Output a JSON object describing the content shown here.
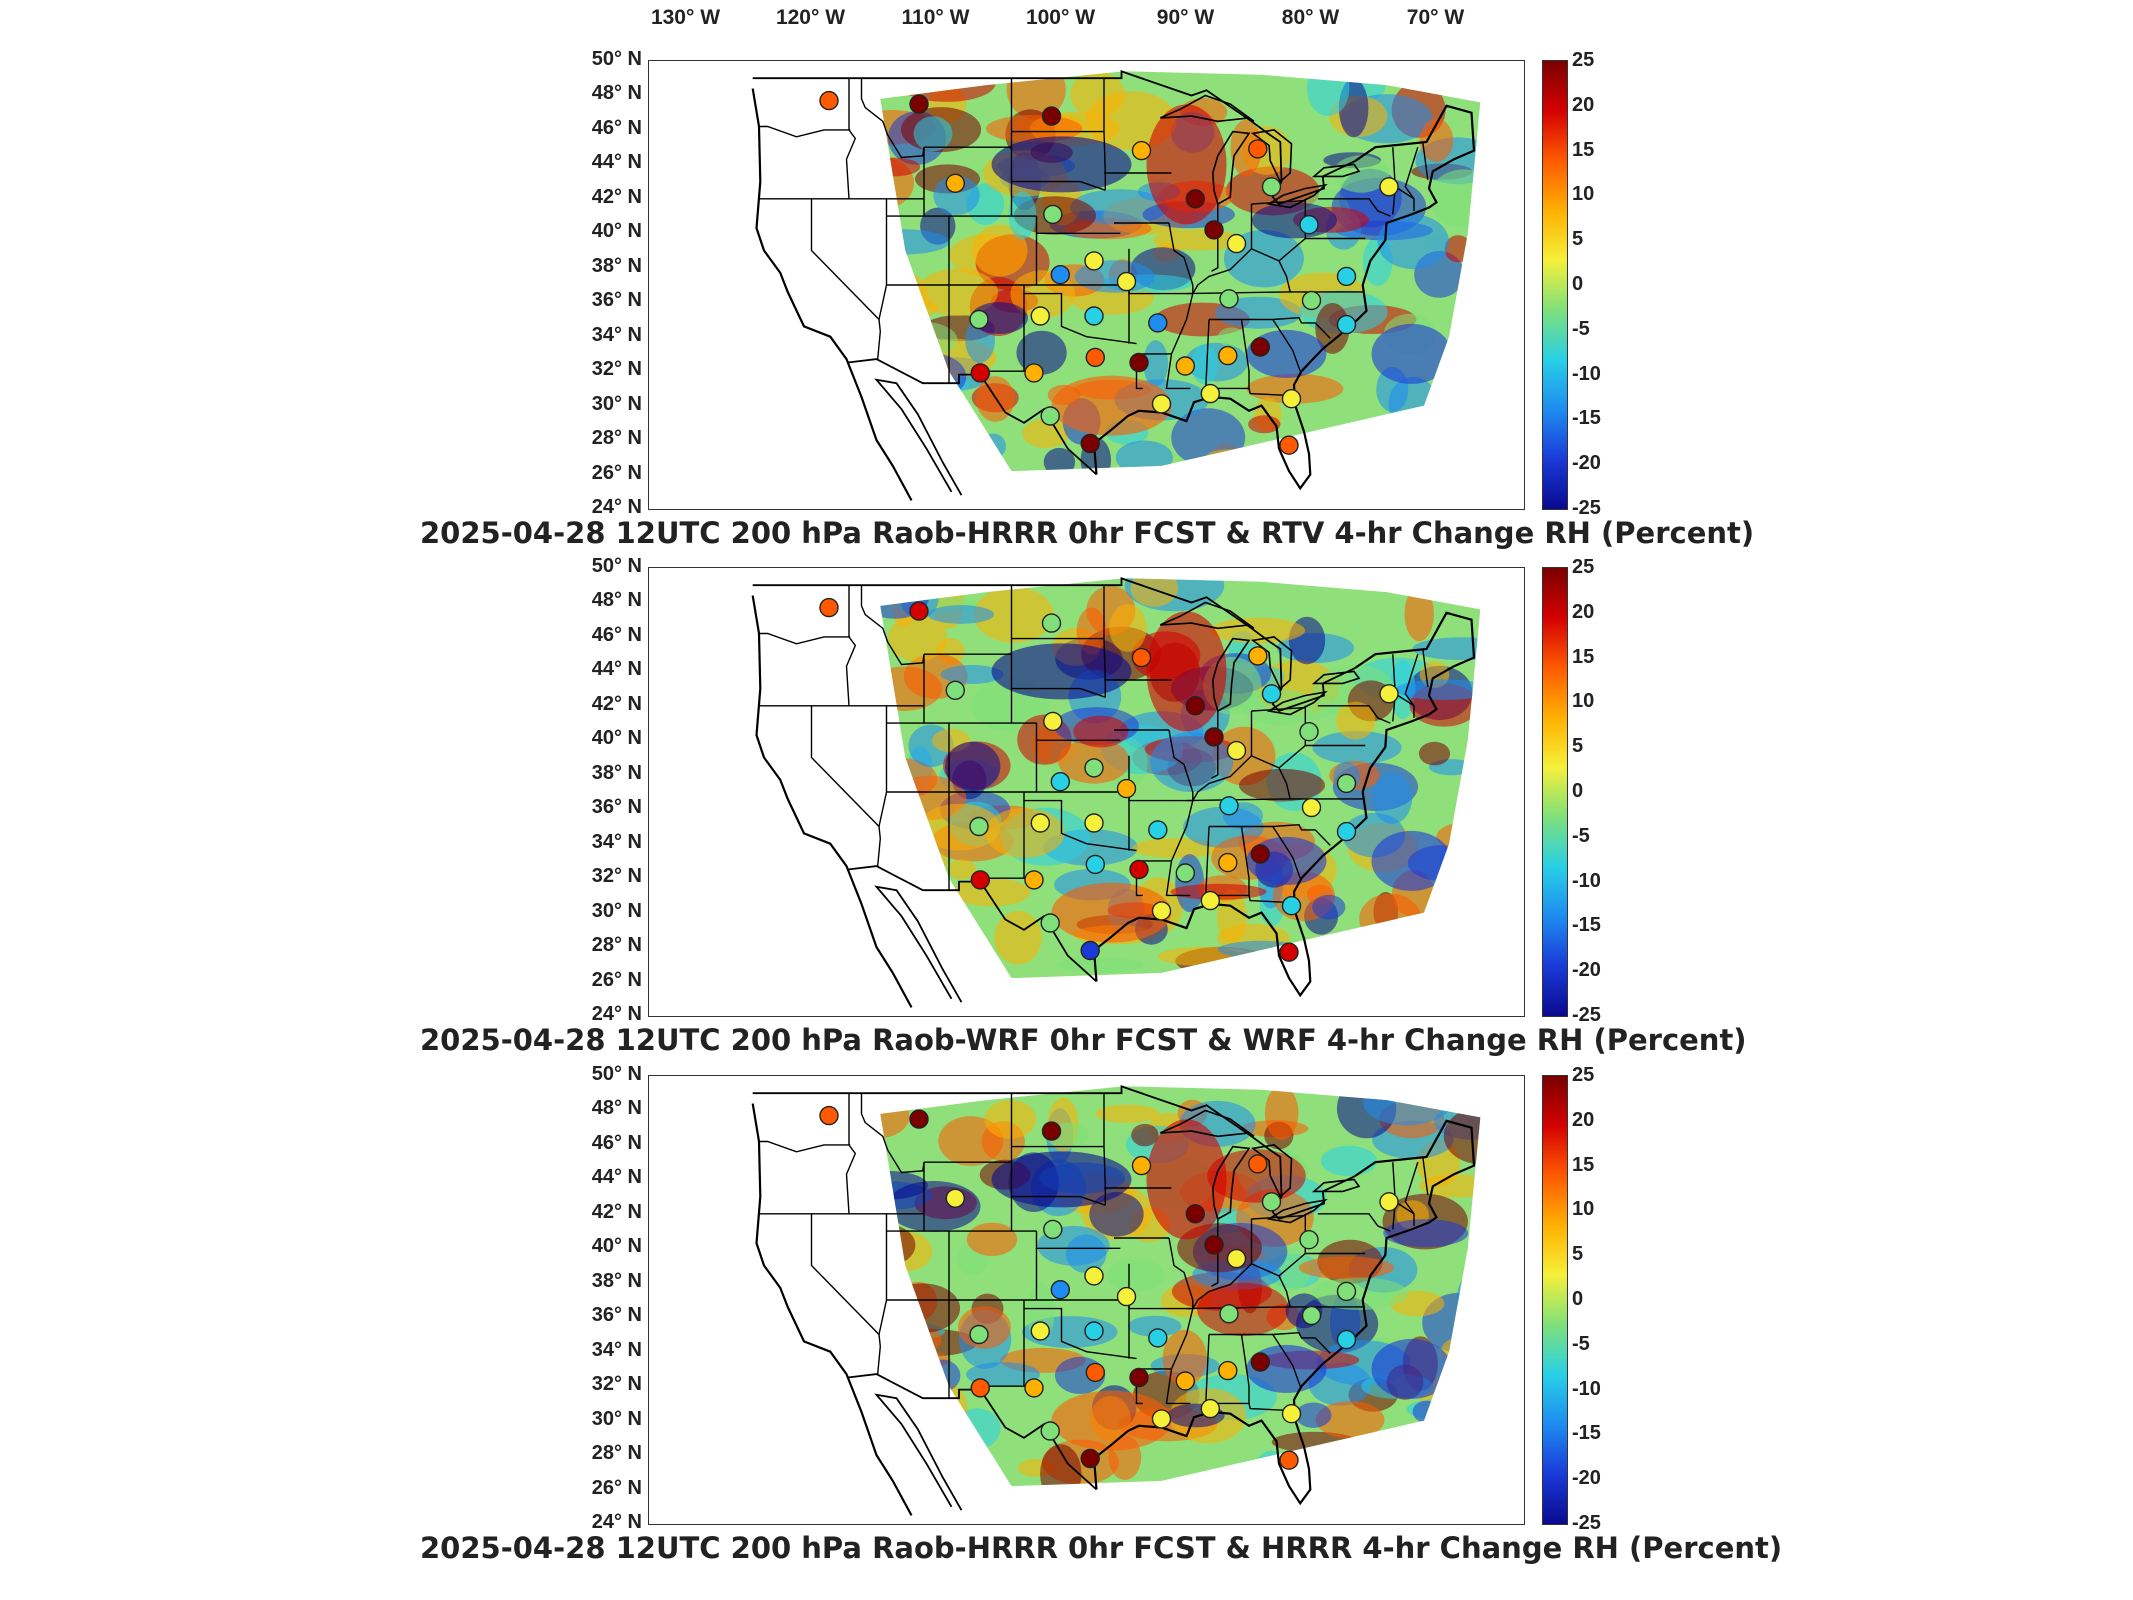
{
  "top_axis": {
    "lon_labels": [
      "130° W",
      "120° W",
      "110° W",
      "100° W",
      "90° W",
      "80° W",
      "70° W"
    ]
  },
  "lat_labels": [
    "50° N",
    "48° N",
    "46° N",
    "44° N",
    "42° N",
    "40° N",
    "38° N",
    "36° N",
    "34° N",
    "32° N",
    "30° N",
    "28° N",
    "26° N",
    "24° N"
  ],
  "colorbar": {
    "ticks": [
      "25",
      "20",
      "15",
      "10",
      "5",
      "0",
      "-5",
      "-10",
      "-15",
      "-20",
      "-25"
    ],
    "colors": [
      "#7a0000",
      "#d40000",
      "#ff5a00",
      "#ffb000",
      "#f5f03a",
      "#7fe07a",
      "#28d0e6",
      "#1e8cf0",
      "#1a3ad8",
      "#0a0a90"
    ]
  },
  "panels": [
    {
      "title": "2025-04-28 12UTC 200 hPa Raob-HRRR 0hr FCST & RTV 4-hr Change RH (Percent)",
      "stations": [
        {
          "lon": -118.6,
          "lat": 47.7,
          "value": 12
        },
        {
          "lon": -111.4,
          "lat": 47.5,
          "value": 22
        },
        {
          "lon": -100.8,
          "lat": 46.8,
          "value": 23
        },
        {
          "lon": -93.6,
          "lat": 44.8,
          "value": 10
        },
        {
          "lon": -84.3,
          "lat": 44.9,
          "value": 12
        },
        {
          "lon": -108.5,
          "lat": 42.9,
          "value": 6
        },
        {
          "lon": -89.3,
          "lat": 42.0,
          "value": 23
        },
        {
          "lon": -87.8,
          "lat": 40.2,
          "value": 25
        },
        {
          "lon": -100.7,
          "lat": 41.1,
          "value": 0
        },
        {
          "lon": -83.2,
          "lat": 42.7,
          "value": -2
        },
        {
          "lon": -73.8,
          "lat": 42.7,
          "value": 5
        },
        {
          "lon": -86.0,
          "lat": 39.4,
          "value": 5
        },
        {
          "lon": -80.2,
          "lat": 40.5,
          "value": -5
        },
        {
          "lon": -100.1,
          "lat": 37.6,
          "value": -10
        },
        {
          "lon": -97.4,
          "lat": 38.4,
          "value": 5
        },
        {
          "lon": -94.8,
          "lat": 37.2,
          "value": 5
        },
        {
          "lon": -77.2,
          "lat": 37.5,
          "value": -5
        },
        {
          "lon": -106.6,
          "lat": 35.0,
          "value": -3
        },
        {
          "lon": -101.7,
          "lat": 35.2,
          "value": 2
        },
        {
          "lon": -97.4,
          "lat": 35.2,
          "value": -8
        },
        {
          "lon": -92.3,
          "lat": 34.8,
          "value": -10
        },
        {
          "lon": -86.6,
          "lat": 36.2,
          "value": -3
        },
        {
          "lon": -80.0,
          "lat": 36.1,
          "value": -3
        },
        {
          "lon": -77.2,
          "lat": 34.7,
          "value": -8
        },
        {
          "lon": -106.5,
          "lat": 31.9,
          "value": 18
        },
        {
          "lon": -102.2,
          "lat": 31.9,
          "value": 10
        },
        {
          "lon": -97.3,
          "lat": 32.8,
          "value": 12
        },
        {
          "lon": -93.8,
          "lat": 32.5,
          "value": 22
        },
        {
          "lon": -90.1,
          "lat": 32.3,
          "value": 7
        },
        {
          "lon": -86.7,
          "lat": 32.9,
          "value": 8
        },
        {
          "lon": -84.1,
          "lat": 33.4,
          "value": 22
        },
        {
          "lon": -81.6,
          "lat": 30.4,
          "value": 5
        },
        {
          "lon": -88.1,
          "lat": 30.7,
          "value": 5
        },
        {
          "lon": -92.0,
          "lat": 30.1,
          "value": 2
        },
        {
          "lon": -97.7,
          "lat": 27.8,
          "value": 24
        },
        {
          "lon": -100.9,
          "lat": 29.4,
          "value": -3
        },
        {
          "lon": -81.8,
          "lat": 27.7,
          "value": 12
        }
      ]
    },
    {
      "title": "2025-04-28 12UTC 200 hPa Raob-WRF 0hr FCST & WRF 4-hr Change RH (Percent)",
      "stations": [
        {
          "lon": -118.6,
          "lat": 47.7,
          "value": 15
        },
        {
          "lon": -111.4,
          "lat": 47.5,
          "value": 18
        },
        {
          "lon": -100.8,
          "lat": 46.8,
          "value": -3
        },
        {
          "lon": -93.6,
          "lat": 44.8,
          "value": 15
        },
        {
          "lon": -84.3,
          "lat": 44.9,
          "value": 10
        },
        {
          "lon": -108.5,
          "lat": 42.9,
          "value": 0
        },
        {
          "lon": -89.3,
          "lat": 42.0,
          "value": 22
        },
        {
          "lon": -87.8,
          "lat": 40.2,
          "value": 25
        },
        {
          "lon": -100.7,
          "lat": 41.1,
          "value": 5
        },
        {
          "lon": -83.2,
          "lat": 42.7,
          "value": -5
        },
        {
          "lon": -73.8,
          "lat": 42.7,
          "value": 5
        },
        {
          "lon": -86.0,
          "lat": 39.4,
          "value": 3
        },
        {
          "lon": -80.2,
          "lat": 40.5,
          "value": 0
        },
        {
          "lon": -100.1,
          "lat": 37.6,
          "value": -8
        },
        {
          "lon": -97.4,
          "lat": 38.4,
          "value": 0
        },
        {
          "lon": -94.8,
          "lat": 37.2,
          "value": 8
        },
        {
          "lon": -77.2,
          "lat": 37.5,
          "value": 0
        },
        {
          "lon": -106.6,
          "lat": 35.0,
          "value": -3
        },
        {
          "lon": -101.7,
          "lat": 35.2,
          "value": 3
        },
        {
          "lon": -97.4,
          "lat": 35.2,
          "value": 3
        },
        {
          "lon": -92.3,
          "lat": 34.8,
          "value": -8
        },
        {
          "lon": -86.6,
          "lat": 36.2,
          "value": -5
        },
        {
          "lon": -80.0,
          "lat": 36.1,
          "value": 5
        },
        {
          "lon": -77.2,
          "lat": 34.7,
          "value": -8
        },
        {
          "lon": -106.5,
          "lat": 31.9,
          "value": 18
        },
        {
          "lon": -102.2,
          "lat": 31.9,
          "value": 8
        },
        {
          "lon": -97.3,
          "lat": 32.8,
          "value": -8
        },
        {
          "lon": -93.8,
          "lat": 32.5,
          "value": 18
        },
        {
          "lon": -90.1,
          "lat": 32.3,
          "value": -3
        },
        {
          "lon": -86.7,
          "lat": 32.9,
          "value": 10
        },
        {
          "lon": -84.1,
          "lat": 33.4,
          "value": 22
        },
        {
          "lon": -81.6,
          "lat": 30.4,
          "value": -8
        },
        {
          "lon": -88.1,
          "lat": 30.7,
          "value": 5
        },
        {
          "lon": -92.0,
          "lat": 30.1,
          "value": 5
        },
        {
          "lon": -97.7,
          "lat": 27.8,
          "value": -15
        },
        {
          "lon": -100.9,
          "lat": 29.4,
          "value": -3
        },
        {
          "lon": -81.8,
          "lat": 27.7,
          "value": 18
        }
      ]
    },
    {
      "title": "2025-04-28 12UTC 200 hPa Raob-HRRR 0hr FCST & HRRR 4-hr Change RH (Percent)",
      "stations": [
        {
          "lon": -118.6,
          "lat": 47.7,
          "value": 14
        },
        {
          "lon": -111.4,
          "lat": 47.5,
          "value": 23
        },
        {
          "lon": -100.8,
          "lat": 46.8,
          "value": 23
        },
        {
          "lon": -93.6,
          "lat": 44.8,
          "value": 10
        },
        {
          "lon": -84.3,
          "lat": 44.9,
          "value": 12
        },
        {
          "lon": -108.5,
          "lat": 42.9,
          "value": 3
        },
        {
          "lon": -89.3,
          "lat": 42.0,
          "value": 23
        },
        {
          "lon": -87.8,
          "lat": 40.2,
          "value": 25
        },
        {
          "lon": -100.7,
          "lat": 41.1,
          "value": -3
        },
        {
          "lon": -83.2,
          "lat": 42.7,
          "value": -3
        },
        {
          "lon": -73.8,
          "lat": 42.7,
          "value": 5
        },
        {
          "lon": -86.0,
          "lat": 39.4,
          "value": 5
        },
        {
          "lon": -80.2,
          "lat": 40.5,
          "value": -3
        },
        {
          "lon": -100.1,
          "lat": 37.6,
          "value": -12
        },
        {
          "lon": -97.4,
          "lat": 38.4,
          "value": 3
        },
        {
          "lon": -94.8,
          "lat": 37.2,
          "value": 5
        },
        {
          "lon": -77.2,
          "lat": 37.5,
          "value": -3
        },
        {
          "lon": -106.6,
          "lat": 35.0,
          "value": -3
        },
        {
          "lon": -101.7,
          "lat": 35.2,
          "value": 3
        },
        {
          "lon": -97.4,
          "lat": 35.2,
          "value": -5
        },
        {
          "lon": -92.3,
          "lat": 34.8,
          "value": -8
        },
        {
          "lon": -86.6,
          "lat": 36.2,
          "value": -3
        },
        {
          "lon": -80.0,
          "lat": 36.1,
          "value": -3
        },
        {
          "lon": -77.2,
          "lat": 34.7,
          "value": -5
        },
        {
          "lon": -106.5,
          "lat": 31.9,
          "value": 12
        },
        {
          "lon": -102.2,
          "lat": 31.9,
          "value": 10
        },
        {
          "lon": -97.3,
          "lat": 32.8,
          "value": 14
        },
        {
          "lon": -93.8,
          "lat": 32.5,
          "value": 22
        },
        {
          "lon": -90.1,
          "lat": 32.3,
          "value": 8
        },
        {
          "lon": -86.7,
          "lat": 32.9,
          "value": 8
        },
        {
          "lon": -84.1,
          "lat": 33.4,
          "value": 22
        },
        {
          "lon": -81.6,
          "lat": 30.4,
          "value": 5
        },
        {
          "lon": -88.1,
          "lat": 30.7,
          "value": 5
        },
        {
          "lon": -92.0,
          "lat": 30.1,
          "value": 3
        },
        {
          "lon": -97.7,
          "lat": 27.8,
          "value": 24
        },
        {
          "lon": -100.9,
          "lat": 29.4,
          "value": -3
        },
        {
          "lon": -81.8,
          "lat": 27.7,
          "value": 12
        }
      ]
    }
  ]
}
